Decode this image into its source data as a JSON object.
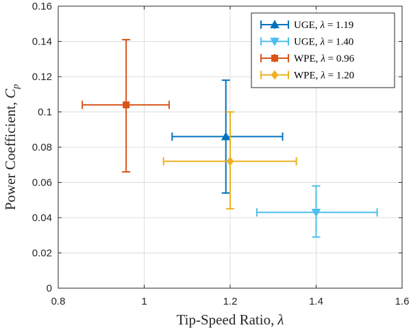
{
  "chart_data": {
    "type": "scatter",
    "title": "",
    "xlabel": "Tip-Speed Ratio,",
    "xlabel_symbol": "λ",
    "ylabel": "Power Coefficient,",
    "ylabel_symbol": "C",
    "ylabel_subscript": "p",
    "xlim": [
      0.8,
      1.6
    ],
    "ylim": [
      0,
      0.16
    ],
    "grid": true,
    "legend_position": "top-right",
    "x_ticks": [
      0.8,
      1,
      1.2,
      1.4,
      1.6
    ],
    "x_tick_labels": [
      "0.8",
      "1",
      "1.2",
      "1.4",
      "1.6"
    ],
    "y_ticks": [
      0,
      0.02,
      0.04,
      0.06,
      0.08,
      0.1,
      0.12,
      0.14,
      0.16
    ],
    "y_tick_labels": [
      "0",
      "0.02",
      "0.04",
      "0.06",
      "0.08",
      "0.1",
      "0.12",
      "0.14",
      "0.16"
    ],
    "series": [
      {
        "name": "UGE, λ = 1.19",
        "label_main": "UGE,",
        "label_symbol": "λ",
        "label_value": " = 1.19",
        "color": "#0072BD",
        "marker": "triangle-up",
        "x": 1.19,
        "y": 0.086,
        "x_err": [
          1.065,
          1.322
        ],
        "y_err": [
          0.054,
          0.118
        ]
      },
      {
        "name": "UGE, λ = 1.40",
        "label_main": "UGE,",
        "label_symbol": "λ",
        "label_value": " = 1.40",
        "color": "#4DBEEE",
        "marker": "triangle-down",
        "x": 1.4,
        "y": 0.043,
        "x_err": [
          1.262,
          1.542
        ],
        "y_err": [
          0.029,
          0.058
        ]
      },
      {
        "name": "WPE, λ = 0.96",
        "label_main": "WPE,",
        "label_symbol": "λ",
        "label_value": " = 0.96",
        "color": "#D95319",
        "marker": "square",
        "x": 0.958,
        "y": 0.104,
        "x_err": [
          0.856,
          1.058
        ],
        "y_err": [
          0.066,
          0.141
        ]
      },
      {
        "name": "WPE, λ = 1.20",
        "label_main": "WPE,",
        "label_symbol": "λ",
        "label_value": " = 1.20",
        "color": "#EDB120",
        "marker": "diamond",
        "x": 1.2,
        "y": 0.072,
        "x_err": [
          1.045,
          1.354
        ],
        "y_err": [
          0.045,
          0.1
        ]
      }
    ]
  }
}
